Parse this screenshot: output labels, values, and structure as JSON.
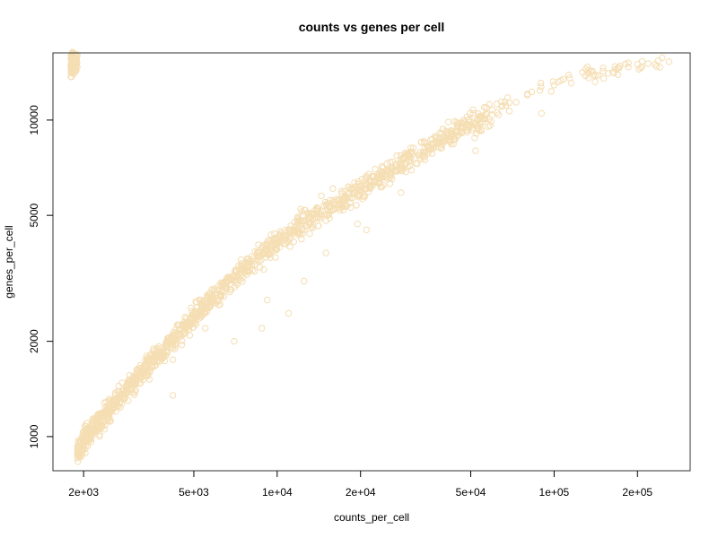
{
  "chart_data": {
    "type": "scatter",
    "title": "counts vs genes per cell",
    "xlabel": "counts_per_cell",
    "ylabel": "genes_per_cell",
    "x_scale": "log",
    "y_scale": "log",
    "xlim": [
      1550,
      310000
    ],
    "ylim": [
      780,
      16300
    ],
    "x_ticks": [
      {
        "value": 2000,
        "label": "2e+03"
      },
      {
        "value": 5000,
        "label": "5e+03"
      },
      {
        "value": 10000,
        "label": "1e+04"
      },
      {
        "value": 20000,
        "label": "2e+04"
      },
      {
        "value": 50000,
        "label": "5e+04"
      },
      {
        "value": 100000,
        "label": "1e+05"
      },
      {
        "value": 200000,
        "label": "2e+05"
      }
    ],
    "y_ticks": [
      {
        "value": 1000,
        "label": "1000"
      },
      {
        "value": 2000,
        "label": "2000"
      },
      {
        "value": 5000,
        "label": "5000"
      },
      {
        "value": 10000,
        "label": "10000"
      }
    ],
    "grid": false,
    "marker": "open-circle",
    "point_color": "#f5deb3",
    "series": [
      {
        "points": [
          [
            1900,
            900
          ],
          [
            2000,
            980
          ],
          [
            2100,
            1050
          ],
          [
            2300,
            1150
          ],
          [
            2500,
            1250
          ],
          [
            2800,
            1400
          ],
          [
            3000,
            1500
          ],
          [
            3300,
            1650
          ],
          [
            3600,
            1800
          ],
          [
            4000,
            1950
          ],
          [
            4500,
            2200
          ],
          [
            5000,
            2450
          ],
          [
            5500,
            2650
          ],
          [
            6000,
            2850
          ],
          [
            6600,
            3100
          ],
          [
            7300,
            3350
          ],
          [
            8000,
            3600
          ],
          [
            9000,
            3900
          ],
          [
            10000,
            4200
          ],
          [
            11000,
            4450
          ],
          [
            12500,
            4800
          ],
          [
            14000,
            5150
          ],
          [
            16000,
            5500
          ],
          [
            18000,
            5850
          ],
          [
            20000,
            6200
          ],
          [
            23000,
            6650
          ],
          [
            26000,
            7100
          ],
          [
            30000,
            7700
          ],
          [
            35000,
            8300
          ],
          [
            40000,
            8900
          ],
          [
            46000,
            9500
          ],
          [
            55000,
            10300
          ],
          [
            65000,
            11100
          ],
          [
            80000,
            12000
          ],
          [
            100000,
            12900
          ],
          [
            130000,
            13800
          ],
          [
            170000,
            14600
          ],
          [
            200000,
            15000
          ],
          [
            260000,
            15300
          ],
          [
            2900,
            1300
          ],
          [
            4200,
            1750
          ],
          [
            5500,
            2200
          ],
          [
            4200,
            1350
          ],
          [
            7000,
            2000
          ],
          [
            9200,
            2700
          ],
          [
            12500,
            3100
          ],
          [
            8800,
            2200
          ],
          [
            11000,
            2450
          ],
          [
            19500,
            4700
          ],
          [
            28000,
            5900
          ],
          [
            52000,
            8000
          ],
          [
            90000,
            10500
          ],
          [
            21000,
            4500
          ],
          [
            15000,
            3800
          ]
        ]
      }
    ]
  }
}
